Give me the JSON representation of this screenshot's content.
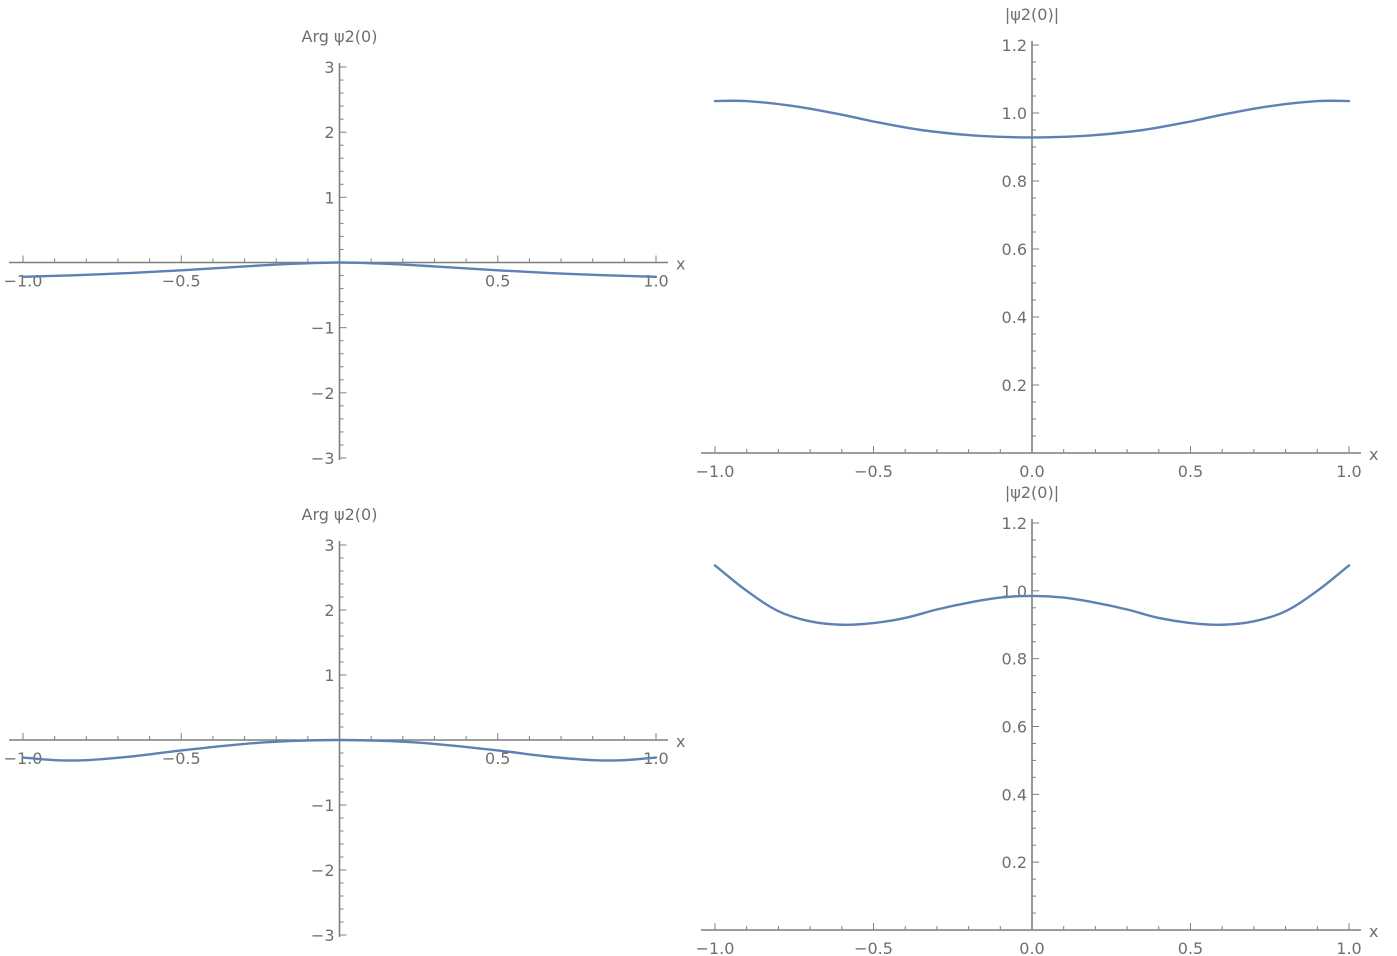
{
  "colors": {
    "series": "#5e81b5",
    "axis": "#7f7f7f",
    "text": "#6f6f6f"
  },
  "chart_data": [
    {
      "type": "line",
      "xlabel": "x",
      "ylabel": "Arg ψ2(0)",
      "xlim": [
        -1,
        1
      ],
      "ylim": [
        -3,
        3
      ],
      "xticks": [
        -1.0,
        -0.5,
        0.5,
        1.0
      ],
      "xtick_labels": [
        "-1.0",
        "-0.5",
        "0.5",
        "1.0"
      ],
      "yticks": [
        -3,
        -2,
        -1,
        1,
        2,
        3
      ],
      "ytick_labels": [
        "-3",
        "-2",
        "-1",
        "1",
        "2",
        "3"
      ],
      "series": [
        {
          "x": [
            -1.0,
            -0.75,
            -0.5,
            -0.3,
            -0.15,
            0.0,
            0.15,
            0.3,
            0.5,
            0.75,
            1.0
          ],
          "y": [
            -0.22,
            -0.18,
            -0.12,
            -0.06,
            -0.02,
            0.0,
            -0.02,
            -0.06,
            -0.12,
            -0.18,
            -0.22
          ]
        }
      ]
    },
    {
      "type": "line",
      "xlabel": "x",
      "ylabel": "|ψ2(0)|",
      "xlim": [
        -1,
        1
      ],
      "ylim": [
        0,
        1.2
      ],
      "xticks": [
        -1.0,
        -0.5,
        0.0,
        0.5,
        1.0
      ],
      "xtick_labels": [
        "-1.0",
        "-0.5",
        "0.0",
        "0.5",
        "1.0"
      ],
      "yticks": [
        0.2,
        0.4,
        0.6,
        0.8,
        1.0,
        1.2
      ],
      "ytick_labels": [
        "0.2",
        "0.4",
        "0.6",
        "0.8",
        "1.0",
        "1.2"
      ],
      "series": [
        {
          "x": [
            -1.0,
            -0.9,
            -0.75,
            -0.6,
            -0.5,
            -0.35,
            -0.2,
            -0.1,
            0.0,
            0.1,
            0.2,
            0.35,
            0.5,
            0.6,
            0.75,
            0.9,
            1.0
          ],
          "y": [
            1.035,
            1.035,
            1.02,
            0.995,
            0.975,
            0.95,
            0.935,
            0.93,
            0.928,
            0.93,
            0.935,
            0.95,
            0.975,
            0.995,
            1.02,
            1.035,
            1.035
          ]
        }
      ]
    },
    {
      "type": "line",
      "xlabel": "x",
      "ylabel": "Arg ψ2(0)",
      "xlim": [
        -1,
        1
      ],
      "ylim": [
        -3,
        3
      ],
      "xticks": [
        -1.0,
        -0.5,
        0.5,
        1.0
      ],
      "xtick_labels": [
        "-1.0",
        "-0.5",
        "0.5",
        "1.0"
      ],
      "yticks": [
        -3,
        -2,
        -1,
        1,
        2,
        3
      ],
      "ytick_labels": [
        "-3",
        "-2",
        "-1",
        "1",
        "2",
        "3"
      ],
      "series": [
        {
          "x": [
            -1.0,
            -0.9,
            -0.8,
            -0.65,
            -0.5,
            -0.3,
            -0.15,
            0.0,
            0.15,
            0.3,
            0.5,
            0.65,
            0.8,
            0.9,
            1.0
          ],
          "y": [
            -0.27,
            -0.31,
            -0.31,
            -0.25,
            -0.16,
            -0.06,
            -0.015,
            0.0,
            -0.015,
            -0.06,
            -0.16,
            -0.25,
            -0.31,
            -0.31,
            -0.27
          ]
        }
      ]
    },
    {
      "type": "line",
      "xlabel": "x",
      "ylabel": "|ψ2(0)|",
      "xlim": [
        -1,
        1
      ],
      "ylim": [
        0,
        1.2
      ],
      "xticks": [
        -1.0,
        -0.5,
        0.0,
        0.5,
        1.0
      ],
      "xtick_labels": [
        "-1.0",
        "-0.5",
        "0.0",
        "0.5",
        "1.0"
      ],
      "yticks": [
        0.2,
        0.4,
        0.6,
        0.8,
        1.0,
        1.2
      ],
      "ytick_labels": [
        "0.2",
        "0.4",
        "0.6",
        "0.8",
        "1.0",
        "1.2"
      ],
      "series": [
        {
          "x": [
            -1.0,
            -0.9,
            -0.8,
            -0.7,
            -0.6,
            -0.5,
            -0.4,
            -0.3,
            -0.2,
            -0.1,
            0.0,
            0.1,
            0.2,
            0.3,
            0.4,
            0.5,
            0.6,
            0.7,
            0.8,
            0.9,
            1.0
          ],
          "y": [
            1.075,
            1.0,
            0.94,
            0.91,
            0.9,
            0.905,
            0.92,
            0.945,
            0.965,
            0.98,
            0.985,
            0.98,
            0.965,
            0.945,
            0.92,
            0.905,
            0.9,
            0.91,
            0.94,
            1.0,
            1.075
          ]
        }
      ]
    }
  ]
}
